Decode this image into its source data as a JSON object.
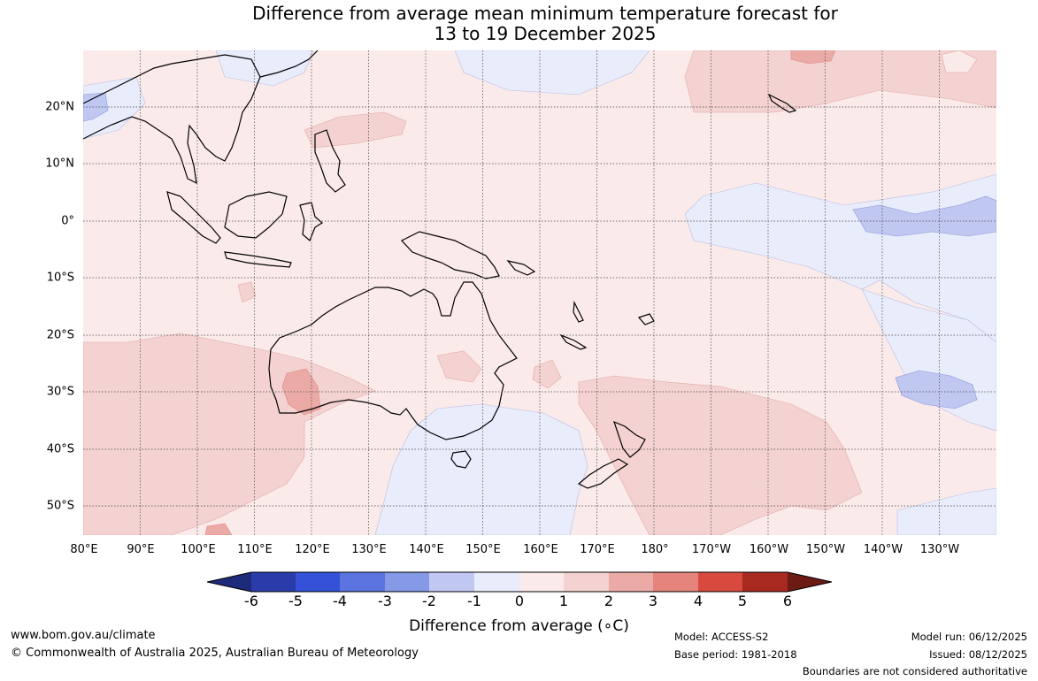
{
  "title": {
    "line1": "Difference from average mean minimum temperature forecast for",
    "line2": "13 to 19 December 2025"
  },
  "map": {
    "latitude_labels": [
      "20°N",
      "10°N",
      "0°",
      "10°S",
      "20°S",
      "30°S",
      "40°S",
      "50°S"
    ],
    "longitude_labels": [
      "80°E",
      "90°E",
      "100°E",
      "110°E",
      "120°E",
      "130°E",
      "140°E",
      "150°E",
      "160°E",
      "170°E",
      "180°",
      "170°W",
      "160°W",
      "150°W",
      "140°W",
      "130°W"
    ]
  },
  "legend": {
    "ticks": [
      "-6",
      "-5",
      "-4",
      "-3",
      "-2",
      "-1",
      "0",
      "1",
      "2",
      "3",
      "4",
      "5",
      "6"
    ],
    "colors": [
      "#1e2a7a",
      "#2a3caa",
      "#3451d8",
      "#5b74e0",
      "#8599e6",
      "#c0c8f2",
      "#e8ecfb",
      "#fbeaea",
      "#f3d2d1",
      "#ecaaa6",
      "#e4847c",
      "#d84a3e",
      "#a82920",
      "#6b1a14"
    ],
    "label": "Difference from average (∘C)"
  },
  "footer": {
    "url": "www.bom.gov.au/climate",
    "copyright": "© Commonwealth of Australia 2025, Australian Bureau of Meteorology",
    "model": "Model: ACCESS-S2",
    "base_period": "Base period: 1981-2018",
    "model_run": "Model run: 06/12/2025",
    "issued": "Issued: 08/12/2025",
    "disclaimer": "Boundaries are not considered authoritative"
  }
}
